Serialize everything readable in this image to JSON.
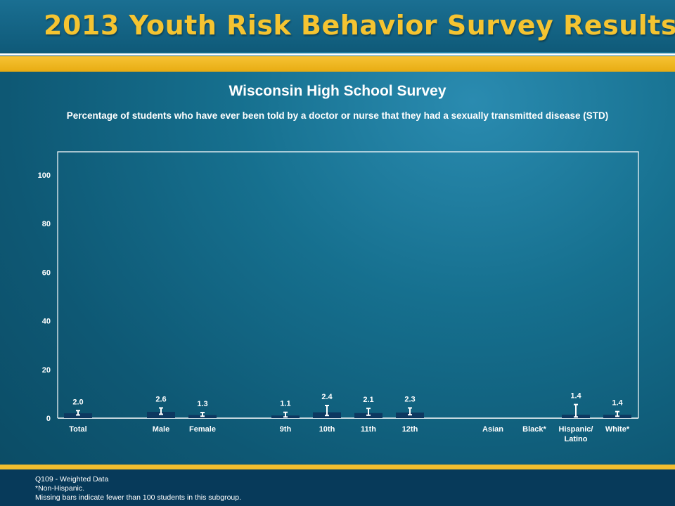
{
  "header": {
    "title": "2013 Youth Risk Behavior Survey Results"
  },
  "chart_data": {
    "type": "bar",
    "title": "Wisconsin High School Survey",
    "subtitle": "Percentage of students who have ever been told by a doctor or nurse that they had a sexually transmitted disease (STD)",
    "ylim": [
      0,
      100
    ],
    "yticks": [
      0,
      20,
      40,
      60,
      80,
      100
    ],
    "categories": [
      "Total",
      "Male",
      "Female",
      "9th",
      "10th",
      "11th",
      "12th",
      "Asian",
      "Black*",
      "Hispanic/ Latino",
      "White*"
    ],
    "values": [
      2.0,
      2.6,
      1.3,
      1.1,
      2.4,
      2.1,
      2.3,
      null,
      null,
      1.4,
      1.4
    ],
    "error_low": [
      1.3,
      1.6,
      0.8,
      0.5,
      1.1,
      1.2,
      1.4,
      null,
      null,
      0.5,
      0.8
    ],
    "error_high": [
      3.1,
      4.2,
      2.3,
      2.4,
      5.2,
      4.0,
      4.2,
      null,
      null,
      5.6,
      2.7
    ],
    "colors": {
      "bar": "#0d3860",
      "axis": "#ffffff",
      "text": "#ffffff",
      "error_bar": "#ffffff"
    }
  },
  "footer": {
    "notes": [
      "Q109 - Weighted Data",
      "*Non-Hispanic.",
      "Missing bars indicate fewer than 100 students in this subgroup."
    ]
  }
}
